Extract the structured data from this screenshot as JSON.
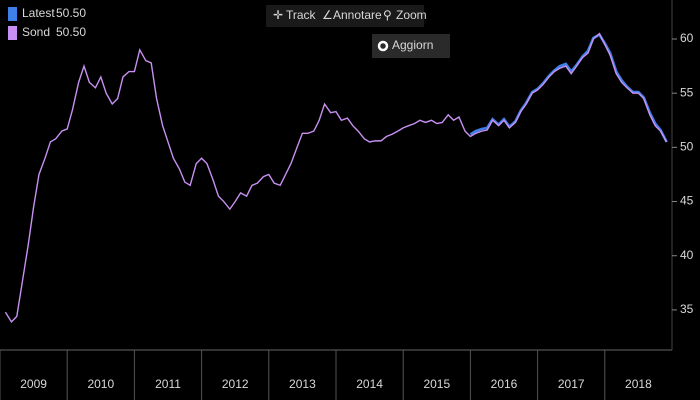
{
  "toolbar": [
    "Track",
    "Annotare",
    "Zoom"
  ],
  "button": "Aggiorn",
  "chart_data": {
    "type": "line",
    "x": [
      2009.08,
      2009.17,
      2009.25,
      2009.33,
      2009.42,
      2009.5,
      2009.58,
      2009.67,
      2009.75,
      2009.83,
      2009.92,
      2010,
      2010.08,
      2010.17,
      2010.25,
      2010.33,
      2010.42,
      2010.5,
      2010.58,
      2010.67,
      2010.75,
      2010.83,
      2010.92,
      2011,
      2011.08,
      2011.17,
      2011.25,
      2011.33,
      2011.42,
      2011.5,
      2011.58,
      2011.67,
      2011.75,
      2011.83,
      2011.92,
      2012,
      2012.08,
      2012.17,
      2012.25,
      2012.33,
      2012.42,
      2012.5,
      2012.58,
      2012.67,
      2012.75,
      2012.83,
      2012.92,
      2013,
      2013.08,
      2013.17,
      2013.25,
      2013.33,
      2013.42,
      2013.5,
      2013.58,
      2013.67,
      2013.75,
      2013.83,
      2013.92,
      2014,
      2014.08,
      2014.17,
      2014.25,
      2014.33,
      2014.42,
      2014.5,
      2014.58,
      2014.67,
      2014.75,
      2014.83,
      2014.92,
      2015,
      2015.08,
      2015.17,
      2015.25,
      2015.33,
      2015.42,
      2015.5,
      2015.58,
      2015.67,
      2015.75,
      2015.83,
      2015.92,
      2016,
      2016.08,
      2016.17,
      2016.25,
      2016.33,
      2016.42,
      2016.5,
      2016.58,
      2016.67,
      2016.75,
      2016.83,
      2016.92,
      2017,
      2017.08,
      2017.17,
      2017.25,
      2017.33,
      2017.42,
      2017.5,
      2017.58,
      2017.67,
      2017.75,
      2017.83,
      2017.92,
      2018,
      2018.08,
      2018.17,
      2018.25,
      2018.33,
      2018.42,
      2018.5,
      2018.58,
      2018.67,
      2018.75,
      2018.83,
      2018.92
    ],
    "series": [
      {
        "name": "Latest",
        "color": "#3f7fe8",
        "last_label": "50.50",
        "values": [
          null,
          null,
          null,
          null,
          null,
          null,
          null,
          null,
          null,
          null,
          null,
          null,
          null,
          null,
          null,
          null,
          null,
          null,
          null,
          null,
          null,
          null,
          null,
          null,
          null,
          null,
          null,
          null,
          null,
          null,
          null,
          null,
          null,
          null,
          null,
          null,
          null,
          null,
          null,
          null,
          null,
          null,
          null,
          null,
          null,
          null,
          null,
          null,
          null,
          null,
          null,
          null,
          null,
          null,
          null,
          null,
          null,
          null,
          null,
          null,
          null,
          null,
          null,
          null,
          null,
          null,
          null,
          null,
          null,
          null,
          null,
          null,
          null,
          null,
          null,
          null,
          null,
          null,
          null,
          null,
          null,
          null,
          null,
          51.2,
          51.5,
          51.7,
          51.8,
          52.6,
          52.1,
          52.6,
          51.9,
          52.4,
          53.4,
          54.1,
          55.1,
          55.4,
          55.9,
          56.6,
          57.1,
          57.5,
          57.7,
          57,
          57.6,
          58.4,
          58.9,
          60.1,
          60.4,
          59.6,
          58.7,
          57,
          56.2,
          55.6,
          55.1,
          55.1,
          54.6,
          53.2,
          52.2,
          51.6,
          50.5
        ]
      },
      {
        "name": "Sond",
        "color": "#c890f2",
        "last_label": "50.50",
        "values": [
          34.8,
          33.9,
          34.4,
          37.5,
          41,
          44.5,
          47.5,
          49,
          50.5,
          50.8,
          51.5,
          51.7,
          53.5,
          56,
          57.5,
          56,
          55.5,
          56.5,
          55,
          54,
          54.5,
          56.5,
          57,
          57,
          59,
          58,
          57.8,
          54.5,
          52,
          50.5,
          49,
          48,
          46.8,
          46.5,
          48.5,
          49,
          48.5,
          47,
          45.5,
          45,
          44.3,
          45,
          45.8,
          45.5,
          46.5,
          46.7,
          47.3,
          47.5,
          46.7,
          46.5,
          47.5,
          48.5,
          50,
          51.3,
          51.3,
          51.5,
          52.5,
          54,
          53.2,
          53.3,
          52.5,
          52.7,
          52,
          51.5,
          50.8,
          50.5,
          50.6,
          50.6,
          51,
          51.2,
          51.5,
          51.8,
          52,
          52.2,
          52.5,
          52.3,
          52.5,
          52.2,
          52.3,
          53,
          52.5,
          52.8,
          51.5,
          51,
          51.3,
          51.5,
          51.6,
          52.5,
          52,
          52.5,
          51.8,
          52.3,
          53.3,
          54,
          55,
          55.3,
          55.8,
          56.5,
          57,
          57.3,
          57.5,
          56.8,
          57.5,
          58.3,
          58.7,
          60,
          60.5,
          59.5,
          58.5,
          56.8,
          56,
          55.5,
          55,
          55,
          54.5,
          53,
          52,
          51.5,
          50.5
        ]
      }
    ],
    "xlim": [
      2009,
      2019
    ],
    "xticks": [
      2009,
      2010,
      2011,
      2012,
      2013,
      2014,
      2015,
      2016,
      2017,
      2018
    ],
    "ylim": [
      31.3,
      63.6
    ],
    "yticks": [
      35,
      40,
      45,
      50,
      55,
      60
    ],
    "grid": false
  }
}
